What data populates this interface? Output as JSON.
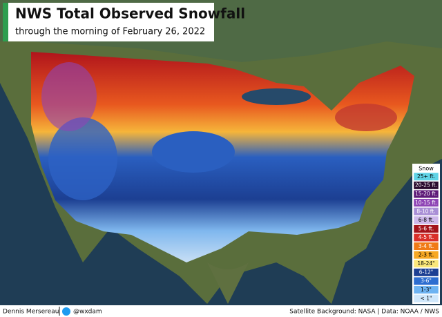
{
  "header": {
    "title": "NWS Total Observed Snowfall",
    "subtitle": "through the morning of February 26, 2022"
  },
  "legend": {
    "title": "Snow",
    "items": [
      {
        "label": "25+ ft.",
        "color": "#5fd3e6",
        "text_color": "#000000"
      },
      {
        "label": "20-25 ft.",
        "color": "#2a0b2e",
        "text_color": "#ffffff"
      },
      {
        "label": "15-20 ft.",
        "color": "#5e1a78",
        "text_color": "#ffffff"
      },
      {
        "label": "10-15 ft.",
        "color": "#8e44b5",
        "text_color": "#ffffff"
      },
      {
        "label": "8-10 ft.",
        "color": "#a98fd6",
        "text_color": "#ffffff"
      },
      {
        "label": "6-8 ft.",
        "color": "#cdb8ea",
        "text_color": "#000000"
      },
      {
        "label": "5-6 ft.",
        "color": "#a3131a",
        "text_color": "#ffffff"
      },
      {
        "label": "4-5 ft.",
        "color": "#d9302a",
        "text_color": "#ffffff"
      },
      {
        "label": "3-4 ft.",
        "color": "#f07a16",
        "text_color": "#ffffff"
      },
      {
        "label": "2-3 ft.",
        "color": "#f7a823",
        "text_color": "#000000"
      },
      {
        "label": "18-24\"",
        "color": "#fbe77a",
        "text_color": "#000000"
      },
      {
        "label": "6-12\"",
        "color": "#1d3f93",
        "text_color": "#ffffff"
      },
      {
        "label": "3-6\"",
        "color": "#2d6dd0",
        "text_color": "#ffffff"
      },
      {
        "label": "1-3\"",
        "color": "#6db3f2",
        "text_color": "#000000"
      },
      {
        "label": "< 1\"",
        "color": "#cfe7fb",
        "text_color": "#000000"
      }
    ]
  },
  "footer": {
    "author": "Dennis Mersereau",
    "handle": "@wxdam",
    "credits": "Satellite Background: NASA | Data: NOAA / NWS"
  }
}
